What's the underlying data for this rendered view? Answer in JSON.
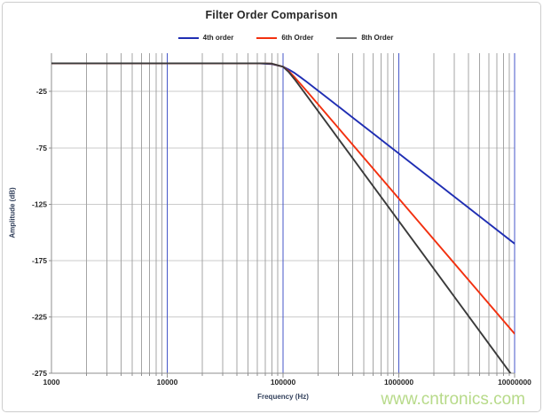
{
  "watermark": "www.cntronics.com",
  "colors": {
    "major_grid": "#4556c8",
    "minor_grid": "#a4a4a4",
    "h_grid": "#cbcbcb",
    "axis": "#8f8f8f",
    "tick": "#8f8f8f",
    "text": "#262626",
    "watermark_green": "#9fce62",
    "frame_border": "#cdcdcd"
  },
  "chart_data": {
    "type": "line",
    "title": "Filter Order Comparison",
    "xlabel": "Frequency (Hz)",
    "ylabel": "Amplitude (dB)",
    "x_scale": "log",
    "xlim_log10": [
      3,
      7
    ],
    "ylim": [
      -275,
      9
    ],
    "x_ticks": [
      1000,
      10000,
      100000,
      1000000,
      10000000
    ],
    "x_tick_labels": [
      "1000",
      "10000",
      "100000",
      "1000000",
      "10000000"
    ],
    "y_ticks": [
      -25,
      -75,
      -125,
      -175,
      -225,
      -275
    ],
    "grid": {
      "h_major": true,
      "v_major": true,
      "v_minor_log": true
    },
    "legend_position": "top-center",
    "cutoff_hz": 100000,
    "series": [
      {
        "name": "4th order",
        "color": "#1f2eb3",
        "legend_color": "#1f2eb3",
        "end_value_db_at_10MHz": -160,
        "points_log10hz_db": [
          [
            3,
            0
          ],
          [
            3.5,
            0
          ],
          [
            4,
            0
          ],
          [
            4.3,
            0
          ],
          [
            4.5,
            0
          ],
          [
            4.6,
            0
          ],
          [
            4.7,
            -0.02
          ],
          [
            4.8,
            -0.11
          ],
          [
            4.9,
            -0.64
          ],
          [
            5,
            -3
          ],
          [
            5.05,
            -5.5
          ],
          [
            5.1,
            -8.6
          ],
          [
            5.15,
            -12.3
          ],
          [
            5.2,
            -16.1
          ],
          [
            5.3,
            -24
          ],
          [
            5.4,
            -32
          ],
          [
            5.5,
            -40
          ],
          [
            5.6,
            -48
          ],
          [
            5.7,
            -56
          ],
          [
            5.8,
            -64
          ],
          [
            5.9,
            -72
          ],
          [
            6,
            -80
          ],
          [
            6.2,
            -96
          ],
          [
            6.4,
            -112
          ],
          [
            6.6,
            -128
          ],
          [
            6.8,
            -144
          ],
          [
            7,
            -160
          ]
        ]
      },
      {
        "name": "6th Order",
        "color": "#f2300f",
        "legend_color": "#f2300f",
        "end_value_db_at_10MHz": -240,
        "points_log10hz_db": [
          [
            3,
            0
          ],
          [
            3.5,
            0
          ],
          [
            4,
            0
          ],
          [
            4.5,
            0
          ],
          [
            4.7,
            0
          ],
          [
            4.8,
            -0.02
          ],
          [
            4.9,
            -0.27
          ],
          [
            5,
            -3
          ],
          [
            5.05,
            -7
          ],
          [
            5.1,
            -12.3
          ],
          [
            5.2,
            -24
          ],
          [
            5.3,
            -36
          ],
          [
            5.4,
            -48
          ],
          [
            5.5,
            -60
          ],
          [
            5.6,
            -72
          ],
          [
            5.7,
            -84
          ],
          [
            5.8,
            -96
          ],
          [
            5.9,
            -108
          ],
          [
            6,
            -120
          ],
          [
            6.2,
            -144
          ],
          [
            6.4,
            -168
          ],
          [
            6.6,
            -192
          ],
          [
            6.8,
            -216
          ],
          [
            7,
            -240
          ]
        ]
      },
      {
        "name": "8th Order",
        "color": "#3a3a3a",
        "legend_color": "#717171",
        "end_value_db_at_10MHz": -280,
        "points_log10hz_db": [
          [
            3,
            0
          ],
          [
            3.5,
            0
          ],
          [
            4,
            0
          ],
          [
            4.6,
            0
          ],
          [
            4.8,
            -0.01
          ],
          [
            4.9,
            -0.17
          ],
          [
            5,
            -3
          ],
          [
            5.05,
            -7.8
          ],
          [
            5.1,
            -14.2
          ],
          [
            5.2,
            -28
          ],
          [
            5.3,
            -42
          ],
          [
            5.4,
            -56
          ],
          [
            5.5,
            -70
          ],
          [
            5.6,
            -84
          ],
          [
            5.7,
            -98
          ],
          [
            5.8,
            -112
          ],
          [
            5.9,
            -126
          ],
          [
            6,
            -140
          ],
          [
            6.2,
            -168
          ],
          [
            6.4,
            -196
          ],
          [
            6.6,
            -224
          ],
          [
            6.8,
            -252
          ],
          [
            7,
            -280
          ]
        ]
      }
    ]
  }
}
